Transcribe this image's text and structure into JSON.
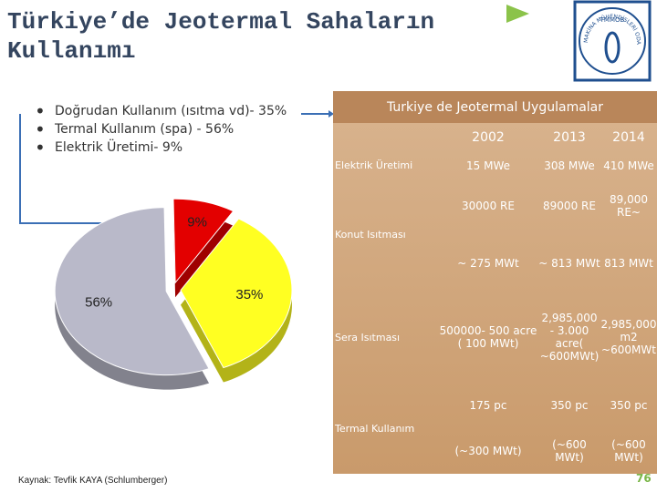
{
  "header": {
    "title": "Türkiye’de Jeotermal Sahaların Kullanımı"
  },
  "bullets": [
    "Doğrudan Kullanım (ısıtma vd)- 35%",
    "Termal Kullanım (spa) - 56%",
    "Elektrik Üretimi- 9%"
  ],
  "chart_data": {
    "type": "pie",
    "values": [
      9,
      35,
      56
    ],
    "value_labels": [
      "9%",
      "35%",
      "56%"
    ],
    "colors": [
      "#e30000",
      "#ffff22",
      "#b9b9c9"
    ]
  },
  "table": {
    "title": "Turkiye de Jeotermal Uygulamalar",
    "columns": [
      "2002",
      "2013",
      "2014"
    ],
    "rows": [
      {
        "label": "Elektrik Üretimi",
        "cells": [
          [
            "15 MWe"
          ],
          [
            "308  MWe"
          ],
          [
            "410 MWe"
          ]
        ]
      },
      {
        "label": "Konut Isıtması",
        "cells": [
          [
            "30000 RE",
            "~ 275 MWt"
          ],
          [
            "89000 RE",
            "~ 813 MWt"
          ],
          [
            "89,000 RE~",
            "813 MWt"
          ]
        ]
      },
      {
        "label": "Sera Isıtması",
        "cells": [
          [
            "500000- 500 acre ( 100 MWt)"
          ],
          [
            "2,985,000 - 3.000 acre( ~600MWt)"
          ],
          [
            "2,985,000 m2 ~600MWt"
          ]
        ]
      },
      {
        "label": "Termal Kullanım",
        "cells": [
          [
            "175 pc",
            "(~300 MWt)"
          ],
          [
            "350 pc",
            "(~600 MWt)"
          ],
          [
            "350 pc",
            "(~600 MWt)"
          ]
        ]
      }
    ]
  },
  "source": "Kaynak: Tevfik KAYA (Schlumberger)",
  "page_number": "76",
  "logo": {
    "top_text": "TMMOB",
    "ring_text": "MAKİNA MÜHENDİSLERİ ODASI"
  }
}
